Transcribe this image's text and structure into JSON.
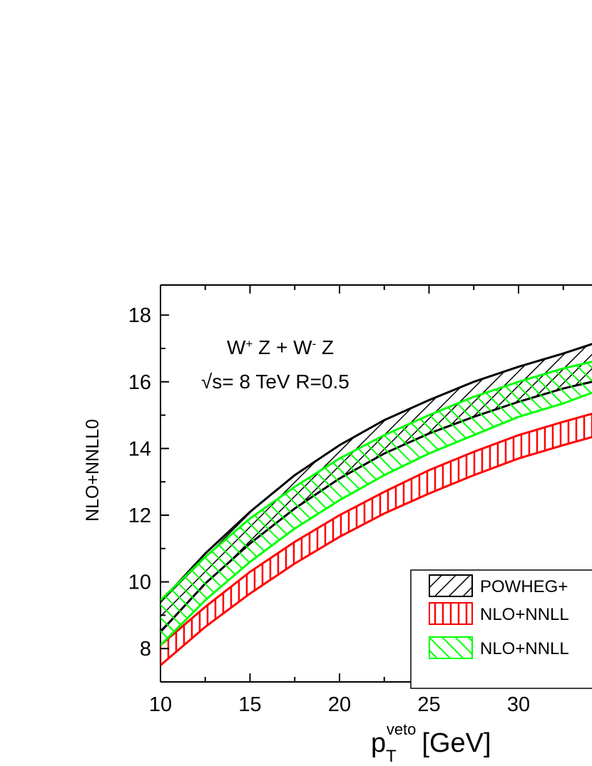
{
  "chart_data": {
    "type": "area",
    "xlabel": {
      "main": "p",
      "sub": "T",
      "sup": "veto",
      "unit": "[GeV]"
    },
    "ylabel": "NLO+NNLL0",
    "xlim": [
      10,
      40
    ],
    "ylim": [
      7,
      19
    ],
    "x_ticks": [
      "10",
      "15",
      "20",
      "25",
      "30"
    ],
    "y_ticks": [
      "8",
      "10",
      "12",
      "14",
      "16",
      "18"
    ],
    "x_tick_values": [
      10,
      15,
      20,
      25,
      30
    ],
    "y_tick_values": [
      8,
      10,
      12,
      14,
      16,
      18
    ],
    "annotation": {
      "line1": {
        "a": "W",
        "a_sup": "+",
        "b": " Z + W",
        "b_sup": "-",
        "c": " Z"
      },
      "line2": "√s= 8 TeV R=0.5"
    },
    "legend_placement": "bottom-right",
    "grid": false,
    "series": [
      {
        "name": "POWHEG+",
        "color": "#000000",
        "hatch": "diagonal-right",
        "x": [
          10,
          12.5,
          15,
          17.5,
          20,
          22.5,
          25,
          27.5,
          30,
          32.5,
          34.5
        ],
        "upper": [
          9.4,
          10.85,
          12.1,
          13.2,
          14.1,
          14.85,
          15.45,
          16.0,
          16.45,
          16.85,
          17.2
        ],
        "lower": [
          8.5,
          9.95,
          11.15,
          12.2,
          13.1,
          13.85,
          14.45,
          14.95,
          15.4,
          15.8,
          16.05
        ]
      },
      {
        "name": "NLO+NNLL",
        "color": "#ff0000",
        "hatch": "vertical",
        "x": [
          10,
          12.5,
          15,
          17.5,
          20,
          22.5,
          25,
          27.5,
          30,
          32.5,
          34.5
        ],
        "upper": [
          8.1,
          9.25,
          10.3,
          11.2,
          12.0,
          12.7,
          13.35,
          13.9,
          14.4,
          14.8,
          15.1
        ],
        "lower": [
          7.5,
          8.65,
          9.65,
          10.55,
          11.35,
          12.05,
          12.65,
          13.2,
          13.7,
          14.1,
          14.4
        ]
      },
      {
        "name": "NLO+NNLL",
        "color": "#00ff00",
        "hatch": "diagonal-left",
        "x": [
          10,
          12.5,
          15,
          17.5,
          20,
          22.5,
          25,
          27.5,
          30,
          32.5,
          34.5
        ],
        "upper": [
          9.45,
          10.75,
          11.9,
          12.85,
          13.7,
          14.4,
          15.0,
          15.55,
          16.0,
          16.4,
          16.65
        ],
        "lower": [
          8.1,
          9.45,
          10.6,
          11.6,
          12.45,
          13.2,
          13.85,
          14.4,
          14.95,
          15.35,
          15.75
        ]
      }
    ]
  }
}
